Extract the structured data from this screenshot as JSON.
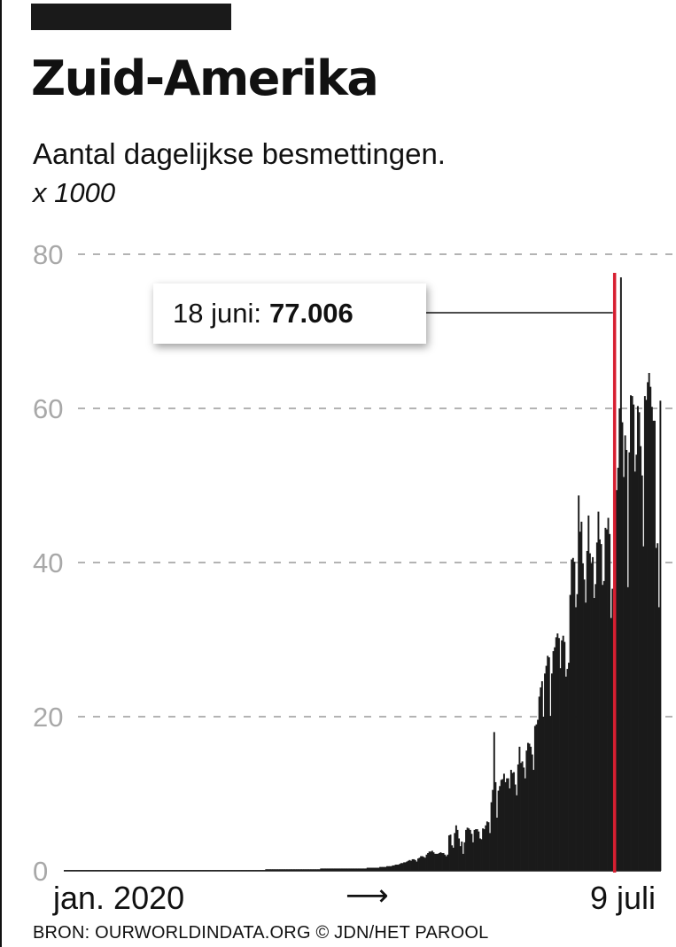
{
  "header": {
    "title": "Zuid-Amerika",
    "subtitle": "Aantal dagelijkse besmettingen.",
    "unit": "x 1000"
  },
  "footer": {
    "source": "BRON: OURWORLDINDATA.ORG © JDN/HET PAROOL",
    "arrow": "⟶"
  },
  "callout": {
    "date_label": "18 juni:",
    "value_label": "77.006"
  },
  "colors": {
    "bars": "#1a1a1a",
    "highlight_line": "#d71f31",
    "gridline": "#9a9a9a",
    "tick_label": "#a8a8a8",
    "text": "#111111"
  },
  "chart_data": {
    "type": "bar",
    "title": "Zuid-Amerika",
    "subtitle": "Aantal dagelijkse besmettingen.",
    "ylabel": "x 1000",
    "ylim": [
      0,
      80
    ],
    "yticks": [
      0,
      20,
      40,
      60,
      80
    ],
    "xticks": [
      "jan. 2020",
      "9 juli"
    ],
    "grid": true,
    "highlight": {
      "date": "18 juni",
      "value": 77.006,
      "label": "18 juni: 77.006",
      "color": "#d71f31"
    },
    "daily_values_x1000": [
      0.1,
      0.1,
      0.1,
      0.1,
      0.1,
      0.1,
      0.1,
      0.1,
      0.1,
      0.1,
      0.1,
      0.1,
      0.1,
      0.1,
      0.1,
      0.1,
      0.1,
      0.1,
      0.1,
      0.1,
      0.1,
      0.1,
      0.1,
      0.1,
      0.1,
      0.1,
      0.1,
      0.1,
      0.1,
      0.1,
      0.1,
      0.1,
      0.1,
      0.1,
      0.1,
      0.1,
      0.1,
      0.1,
      0.1,
      0.1,
      0.1,
      0.1,
      0.1,
      0.1,
      0.1,
      0.1,
      0.1,
      0.1,
      0.1,
      0.1,
      0.1,
      0.1,
      0.1,
      0.1,
      0.1,
      0.1,
      0.1,
      0.1,
      0.1,
      0.1,
      0.1,
      0.1,
      0.1,
      0.1,
      0.1,
      0.1,
      0.1,
      0.1,
      0.1,
      0.1,
      0.1,
      0.1,
      0.1,
      0.1,
      0.1,
      0.1,
      0.1,
      0.1,
      0.1,
      0.1,
      0.1,
      0.1,
      0.1,
      0.1,
      0.1,
      0.1,
      0.1,
      0.1,
      0.1,
      0.1,
      0.1,
      0.1,
      0.1,
      0.1,
      0.1,
      0.1,
      0.1,
      0.1,
      0.1,
      0.1,
      0.1,
      0.1,
      0.1,
      0.1,
      0.1,
      0.1,
      0.1,
      0.1,
      0.1,
      0.1,
      0.1,
      0.1,
      0.1,
      0.1,
      0.1,
      0.1,
      0.1,
      0.1,
      0.1,
      0.1,
      0.1,
      0.1,
      0.1,
      0.1,
      0.1,
      0.1,
      0.1,
      0.1,
      0.1,
      0.1,
      0.1,
      0.1,
      0.1,
      0.1,
      0.1,
      0.1,
      0.1,
      0.1,
      0.1,
      0.1,
      0.1,
      0.1,
      0.1,
      0.2,
      0.2,
      0.2,
      0.2,
      0.2,
      0.2,
      0.2,
      0.2,
      0.2,
      0.2,
      0.2,
      0.2,
      0.2,
      0.2,
      0.2,
      0.2,
      0.2,
      0.2,
      0.2,
      0.2,
      0.2,
      0.2,
      0.2,
      0.2,
      0.2,
      0.2,
      0.2,
      0.2,
      0.2,
      0.2,
      0.2,
      0.2,
      0.2,
      0.2,
      0.2,
      0.2,
      0.2,
      0.2,
      0.2,
      0.3,
      0.3,
      0.3,
      0.3,
      0.3,
      0.3,
      0.3,
      0.3,
      0.3,
      0.3,
      0.3,
      0.3,
      0.3,
      0.3,
      0.3,
      0.3,
      0.3,
      0.3,
      0.3,
      0.3,
      0.3,
      0.3,
      0.3,
      0.3,
      0.3,
      0.3,
      0.3,
      0.3,
      0.3,
      0.3,
      0.3,
      0.3,
      0.3,
      0.4,
      0.4,
      0.4,
      0.4,
      0.4,
      0.4,
      0.4,
      0.4,
      0.4,
      0.5,
      0.5,
      0.5,
      0.5,
      0.5,
      0.6,
      0.6,
      0.6,
      0.6,
      0.7,
      0.7,
      0.8,
      0.8,
      0.8,
      0.9,
      1.0,
      1.0,
      1.1,
      1.1,
      1.2,
      1.3,
      1.4,
      1.3,
      1.5,
      1.5,
      1.4,
      1.2,
      1.6,
      1.7,
      1.9,
      1.9,
      1.8,
      1.7,
      2.1,
      2.3,
      2.5,
      2.5,
      2.6,
      2.4,
      2.2,
      2.2,
      2.2,
      2.3,
      2.4,
      2.3,
      2.3,
      2.1,
      1.9,
      2.1,
      4.6,
      4.7,
      3.3,
      3.0,
      4.9,
      5.9,
      5.3,
      4.2,
      3.2,
      3.8,
      2.2,
      3.7,
      5.3,
      5.6,
      5.5,
      5.3,
      4.8,
      3.7,
      5.3,
      5.4,
      5.4,
      5.1,
      4.2,
      4.1,
      5.5,
      5.4,
      5.9,
      6.4,
      6.3,
      4.9,
      8.9,
      10.5,
      18.0,
      11.5,
      6.9,
      10.4,
      11.0,
      11.8,
      11.9,
      12.6,
      11.5,
      12.0,
      12.0,
      10.7,
      13.1,
      12.7,
      12.8,
      11.2,
      9.8,
      13.8,
      16.1,
      14.0,
      14.2,
      13.4,
      12.0,
      15.6,
      16.6,
      16.5,
      16.1,
      15.1,
      13.1,
      18.8,
      19.0,
      19.6,
      22.6,
      23.8,
      24.6,
      20.0,
      25.6,
      26.6,
      27.9,
      27.7,
      20.1,
      25.6,
      28.5,
      29.0,
      30.3,
      30.8,
      30.2,
      26.3,
      29.9,
      30.5,
      29.7,
      25.2,
      26.2,
      27.0,
      35.8,
      40.4,
      40.6,
      40.1,
      34.2,
      35.9,
      48.7,
      44.0,
      45.3,
      39.9,
      37.8,
      34.8,
      41.5,
      46.1,
      41.2,
      39.9,
      40.7,
      35.4,
      37.2,
      42.6,
      46.6,
      43.0,
      42.4,
      37.1,
      37.6,
      44.5,
      44.3,
      45.8,
      43.7,
      32.8,
      36.6,
      35.0,
      37.5,
      49.4,
      52.3,
      60.0,
      77.0,
      58.2,
      51.1,
      56.5,
      54.6,
      36.8,
      54.3,
      61.7,
      61.6,
      60.5,
      51.8,
      54.0,
      60.3,
      59.5,
      55.1,
      51.3,
      42.1,
      61.6,
      61.1,
      63.4,
      64.6,
      62.8,
      60.2,
      58.4,
      58.4,
      41.9,
      42.5,
      34.2,
      61.0
    ]
  }
}
